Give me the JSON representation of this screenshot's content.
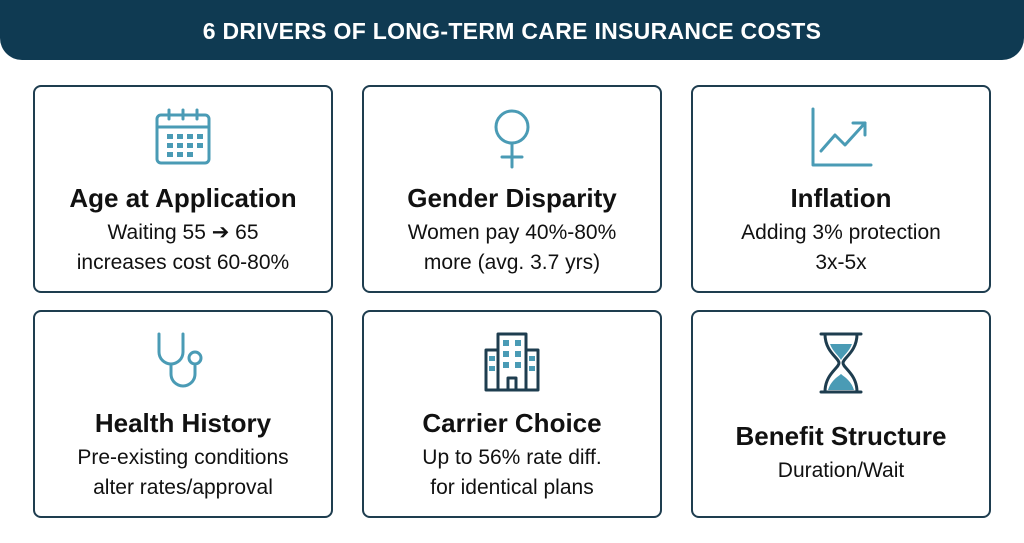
{
  "header": {
    "title": "6 DRIVERS OF LONG-TERM CARE INSURANCE COSTS"
  },
  "cards": [
    {
      "title": "Age at Application",
      "lines": [
        "Waiting 55 ➔ 65",
        "increases cost 60-80%"
      ]
    },
    {
      "title": "Gender Disparity",
      "lines": [
        "Women pay 40%-80%",
        "more (avg. 3.7 yrs)"
      ]
    },
    {
      "title": "Inflation",
      "lines": [
        "Adding 3% protection",
        "3x-5x"
      ]
    },
    {
      "title": "Health History",
      "lines": [
        "Pre-existing conditions",
        "alter rates/approval"
      ]
    },
    {
      "title": "Carrier Choice",
      "lines": [
        "Up to 56% rate diff.",
        "for identical plans"
      ]
    },
    {
      "title": "Benefit Structure",
      "lines": [
        "Duration/Wait"
      ]
    }
  ]
}
